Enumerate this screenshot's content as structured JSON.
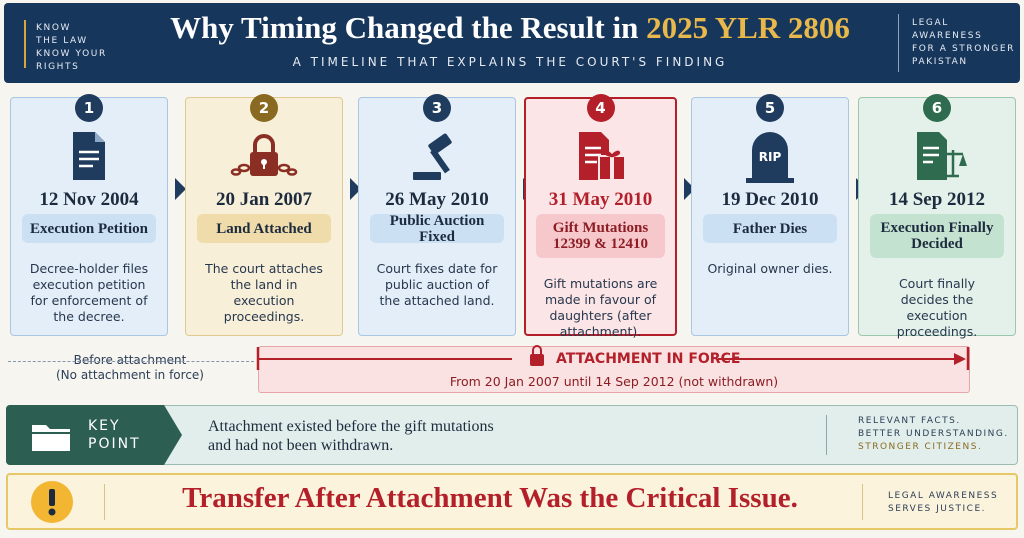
{
  "header": {
    "left_tag": [
      "KNOW",
      "THE LAW",
      "KNOW YOUR",
      "RIGHTS"
    ],
    "title": "Why Timing Changed the Result in",
    "title_highlight": "2025 YLR 2806",
    "subtitle": "A TIMELINE THAT EXPLAINS THE COURT'S FINDING",
    "right_tag": [
      "LEGAL",
      "AWARENESS",
      "FOR A STRONGER",
      "PAKISTAN"
    ]
  },
  "steps": [
    {
      "number": "1",
      "date": "12 Nov 2004",
      "event": "Execution Petition",
      "description": "Decree-holder files execution petition for enforcement of the decree."
    },
    {
      "number": "2",
      "date": "20 Jan 2007",
      "event": "Land Attached",
      "description": "The court attaches the land in execution proceedings."
    },
    {
      "number": "3",
      "date": "26 May 2010",
      "event": "Public Auction Fixed",
      "description": "Court fixes date for public auction of the attached land."
    },
    {
      "number": "4",
      "date": "31 May 2010",
      "event": "Gift Mutations 12399 & 12410",
      "description": "Gift mutations are made in favour of daughters (after attachment)."
    },
    {
      "number": "5",
      "date": "19 Dec 2010",
      "event": "Father Dies",
      "description": "Original owner dies.",
      "icon_label": "RIP"
    },
    {
      "number": "6",
      "date": "14 Sep 2012",
      "event": "Execution Finally Decided",
      "description": "Court finally decides the execution proceedings."
    }
  ],
  "attachment": {
    "before": [
      "Before attachment",
      "(No attachment in force)"
    ],
    "label": "ATTACHMENT IN FORCE",
    "range": "From 20 Jan 2007 until 14 Sep 2012 (not withdrawn)"
  },
  "key_point": {
    "label": [
      "KEY",
      "POINT"
    ],
    "text": [
      "Attachment existed before the gift mutations",
      "and had not been withdrawn."
    ],
    "right": [
      "RELEVANT FACTS.",
      "BETTER UNDERSTANDING.",
      "STRONGER CITIZENS."
    ]
  },
  "footer": {
    "text": "Transfer After Attachment Was the Critical Issue.",
    "right": [
      "LEGAL AWARENESS",
      "SERVES JUSTICE."
    ]
  }
}
